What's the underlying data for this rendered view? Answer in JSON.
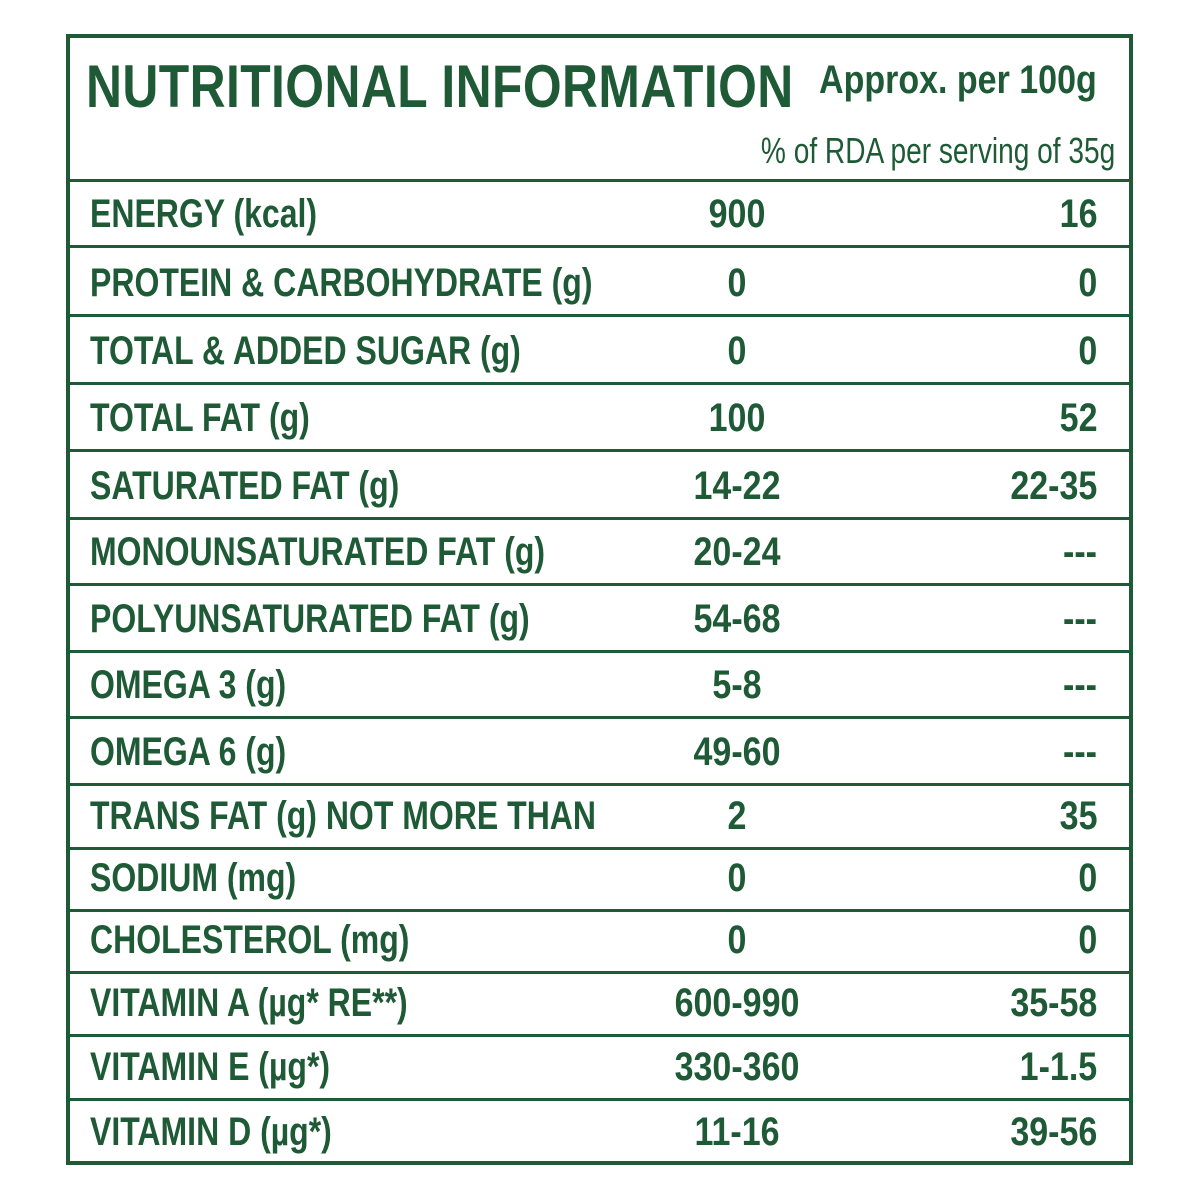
{
  "header": {
    "title": "NUTRITIONAL INFORMATION",
    "approx": "Approx. per 100g",
    "rda_note": "% of RDA per serving of 35g"
  },
  "rows": [
    {
      "label": "ENERGY (kcal)",
      "per100": "900",
      "rda": "16"
    },
    {
      "label": "PROTEIN & CARBOHYDRATE (g)",
      "per100": "0",
      "rda": "0"
    },
    {
      "label": "TOTAL & ADDED SUGAR (g)",
      "per100": "0",
      "rda": "0"
    },
    {
      "label": "TOTAL FAT (g)",
      "per100": "100",
      "rda": "52"
    },
    {
      "label": "SATURATED FAT (g)",
      "per100": "14-22",
      "rda": "22-35"
    },
    {
      "label": "MONOUNSATURATED FAT (g)",
      "per100": "20-24",
      "rda": "---"
    },
    {
      "label": "POLYUNSATURATED FAT (g)",
      "per100": "54-68",
      "rda": "---"
    },
    {
      "label": "OMEGA 3 (g)",
      "per100": "5-8",
      "rda": "---"
    },
    {
      "label": "OMEGA 6 (g)",
      "per100": "49-60",
      "rda": "---"
    },
    {
      "label": "TRANS FAT (g) NOT MORE THAN",
      "per100": "2",
      "rda": "35"
    },
    {
      "label": "SODIUM (mg)",
      "per100": "0",
      "rda": "0"
    },
    {
      "label": "CHOLESTEROL (mg)",
      "per100": "0",
      "rda": "0"
    },
    {
      "label": "VITAMIN A (µg* RE**)",
      "per100": "600-990",
      "rda": "35-58"
    },
    {
      "label": "VITAMIN E (µg*)",
      "per100": "330-360",
      "rda": "1-1.5"
    },
    {
      "label": "VITAMIN D (µg*)",
      "per100": "11-16",
      "rda": "39-56"
    }
  ],
  "colors": {
    "ink": "#1f5a36",
    "background": "#ffffff"
  }
}
